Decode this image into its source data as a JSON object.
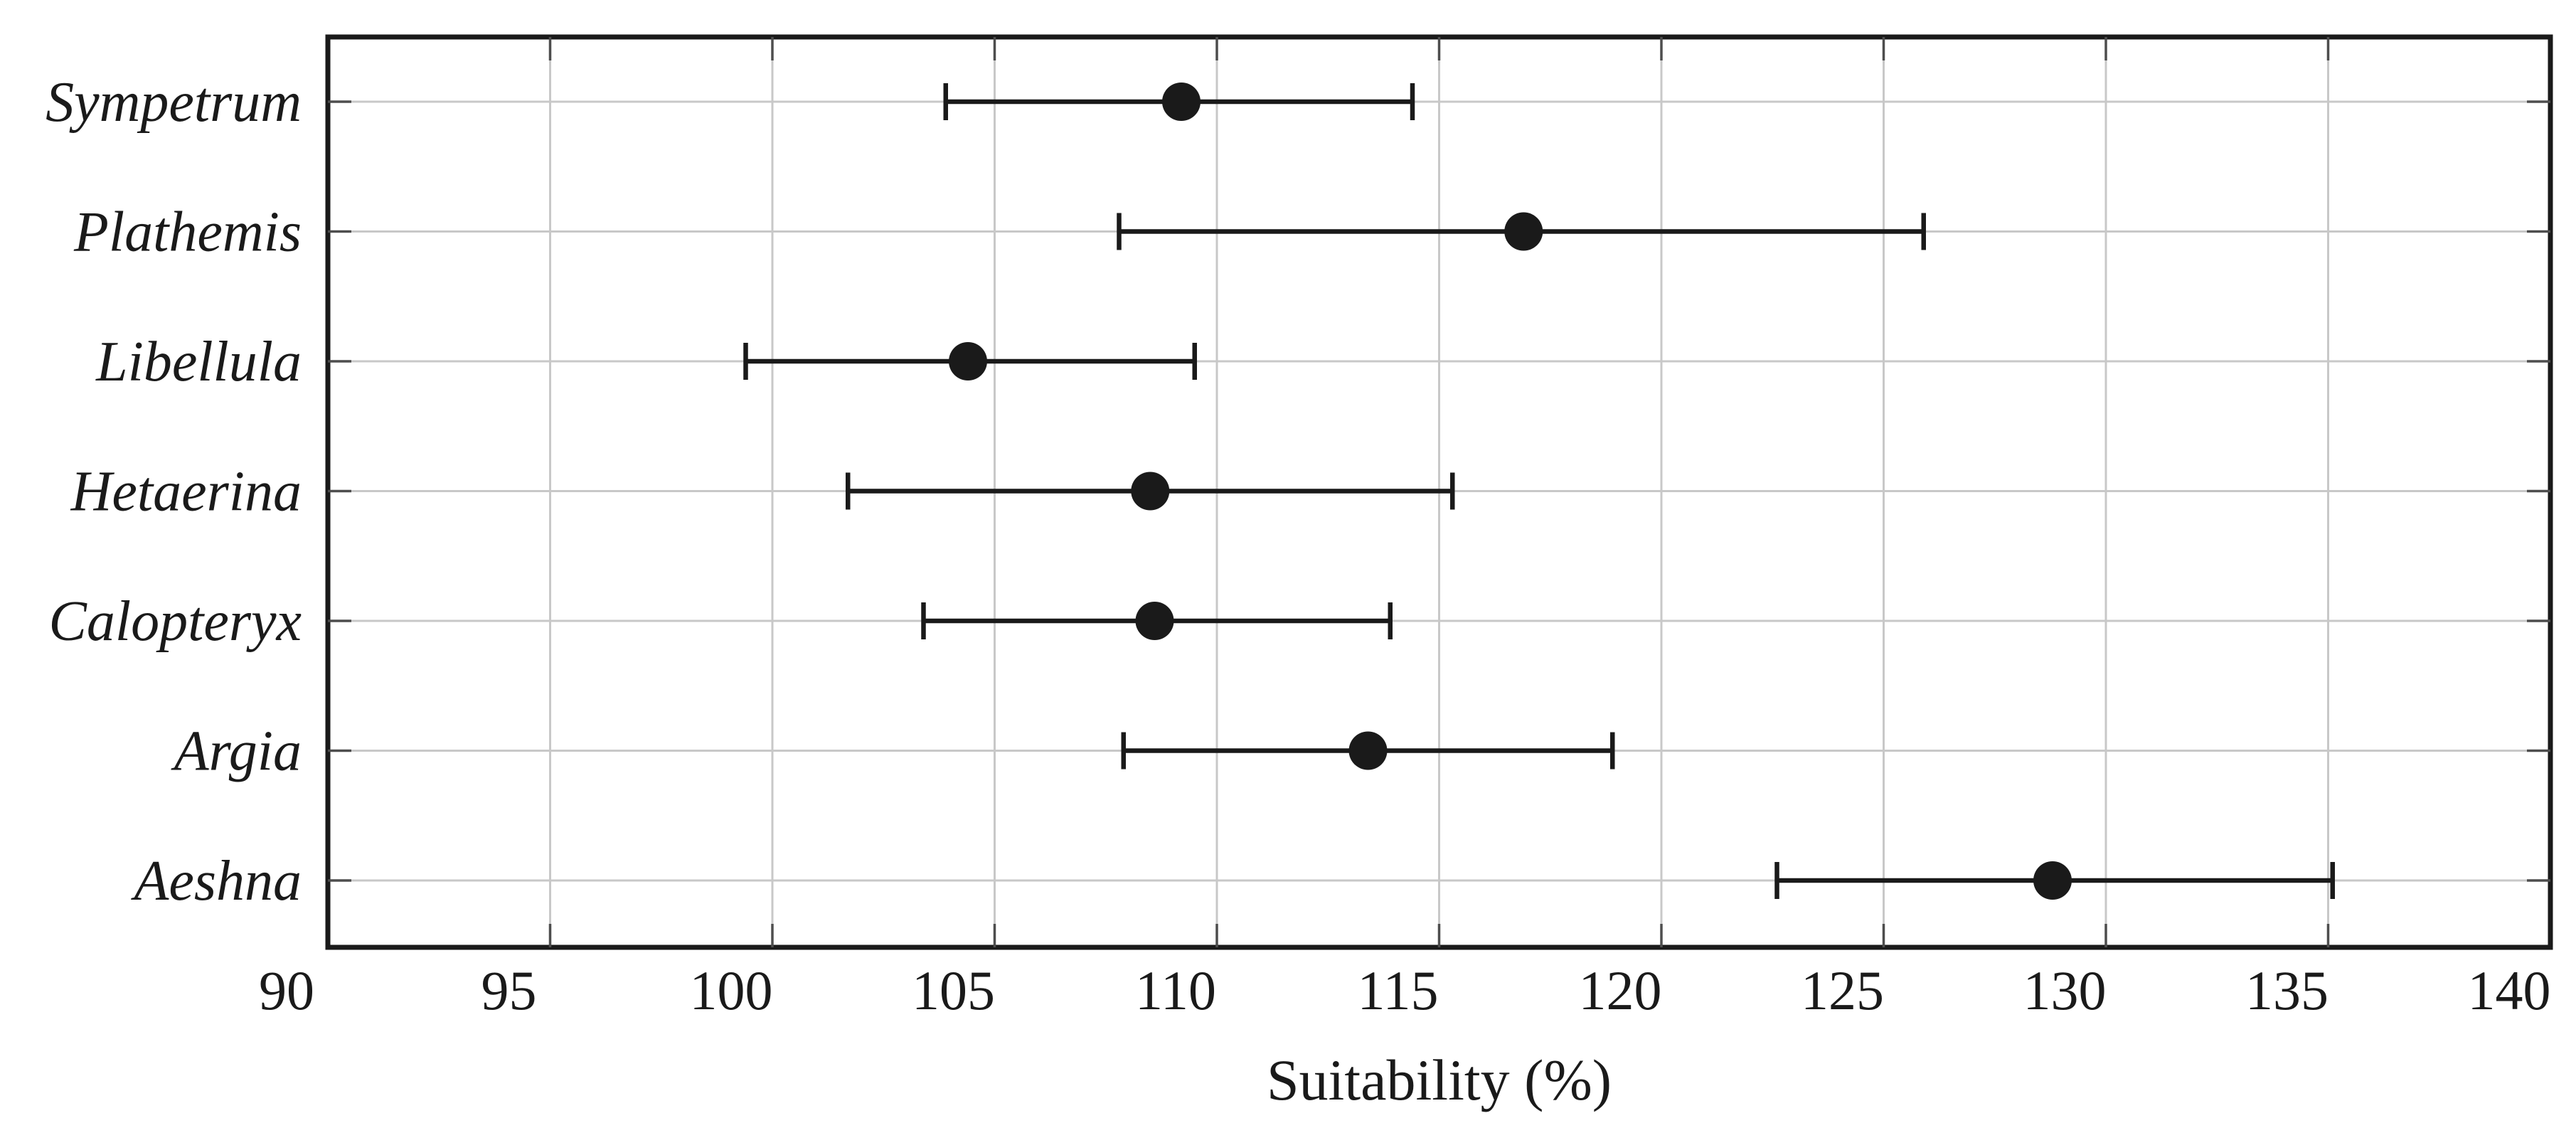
{
  "figure": {
    "background": "#ffffff"
  },
  "chart_data": {
    "type": "scatter",
    "subtype": "horizontal-dot-plot-with-error-bars",
    "title": "",
    "xlabel": "Suitability (%)",
    "ylabel": "",
    "xlim": [
      90,
      140
    ],
    "x_ticks": [
      90,
      95,
      100,
      105,
      110,
      115,
      120,
      125,
      130,
      135,
      140
    ],
    "grid": true,
    "legend": "none",
    "categories": [
      "Sympetrum",
      "Plathemis",
      "Libellula",
      "Hetaerina",
      "Calopteryx",
      "Argia",
      "Aeshna"
    ],
    "series": [
      {
        "name": "Suitability",
        "values": [
          109.2,
          116.9,
          104.4,
          108.5,
          108.6,
          113.4,
          128.8
        ],
        "ci_low": [
          103.9,
          107.8,
          99.4,
          101.7,
          103.4,
          107.9,
          122.6
        ],
        "ci_high": [
          114.4,
          125.9,
          109.5,
          115.3,
          113.9,
          118.9,
          135.1
        ]
      }
    ],
    "marker": "filled-circle",
    "colors": {
      "marker": "#1a1a1a",
      "error_bar": "#1a1a1a",
      "axis_border": "#1a1a1a",
      "tick_mark": "#4d4d4d",
      "grid_line": "#c8c8c8",
      "text": "#1a1a1a",
      "background": "#ffffff"
    }
  }
}
